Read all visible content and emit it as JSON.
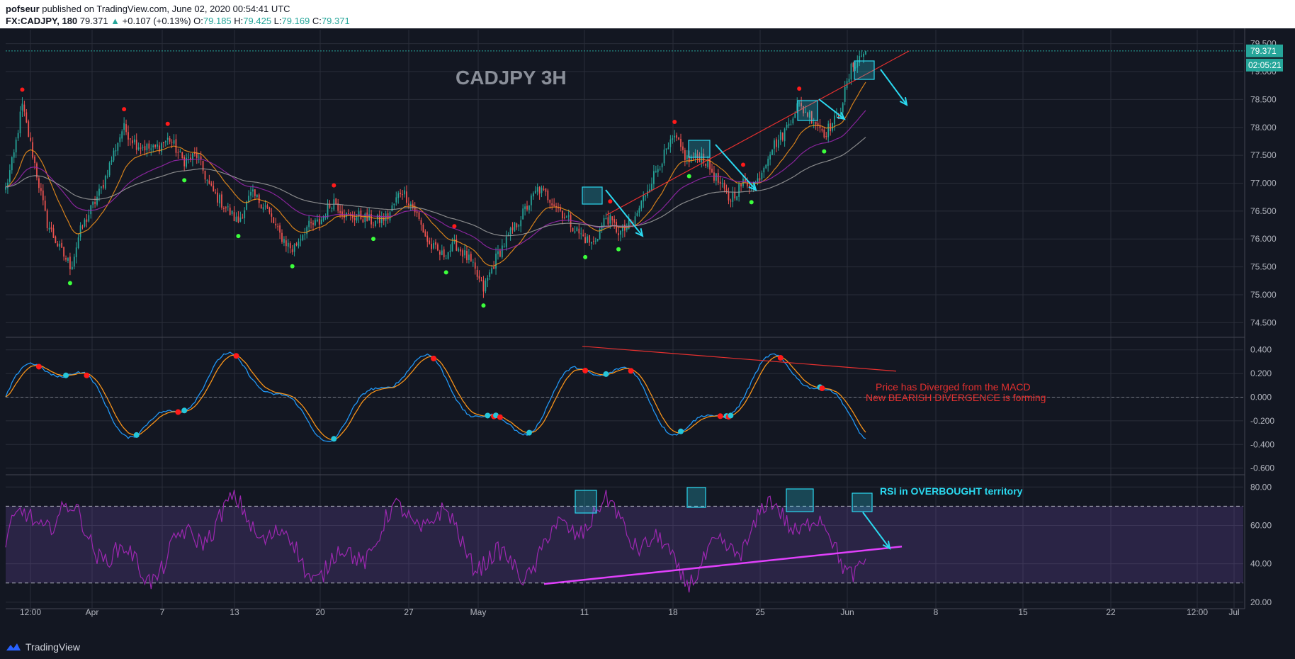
{
  "header": {
    "publisher": "pofseur",
    "published_text": "published on TradingView.com, June 02, 2020 00:54:41 UTC",
    "symbol": "FX:CADJPY, 180",
    "last": "79.371",
    "change": "+0.107 (+0.13%)",
    "o_label": "O:",
    "o": "79.185",
    "h_label": "H:",
    "h": "79.425",
    "l_label": "L:",
    "l": "79.169",
    "c_label": "C:",
    "c": "79.371"
  },
  "footer": {
    "brand": "TradingView"
  },
  "colors": {
    "background": "#131722",
    "bull": "#26a69a",
    "bear": "#ef5350",
    "ema_fast": "#f7931a",
    "ema_mid": "#9c27b0",
    "ema_slow": "#9e9e9e",
    "annotation": "#2bd9f0",
    "trendline": "#e5302f",
    "rsi": "#9c27b0"
  },
  "chart_data": [
    {
      "type": "candlestick",
      "title": "CADJPY 3H",
      "ylim": [
        74.25,
        79.75
      ],
      "yticks": [
        "79.500",
        "79.000",
        "78.500",
        "78.000",
        "77.500",
        "77.000",
        "76.500",
        "76.000",
        "75.500",
        "75.000",
        "74.500"
      ],
      "last_price_label": "79.371",
      "countdown_label": "02:05:21",
      "xticks": [
        "12:00",
        "Apr",
        "7",
        "13",
        "20",
        "27",
        "May",
        "11",
        "18",
        "25",
        "Jun",
        "8",
        "15",
        "22",
        "12:00",
        "Jul"
      ],
      "close_path_points": [
        [
          0,
          76.9
        ],
        [
          0.6,
          77.5
        ],
        [
          1.2,
          78.4
        ],
        [
          2.0,
          77.5
        ],
        [
          3.0,
          76.3
        ],
        [
          4.0,
          75.8
        ],
        [
          4.8,
          75.5
        ],
        [
          5.4,
          76.1
        ],
        [
          6.2,
          76.5
        ],
        [
          7.0,
          76.9
        ],
        [
          8.0,
          77.6
        ],
        [
          8.6,
          78.0
        ],
        [
          9.6,
          77.7
        ],
        [
          10.8,
          77.6
        ],
        [
          12.0,
          77.8
        ],
        [
          13.0,
          77.4
        ],
        [
          14.0,
          77.5
        ],
        [
          15.0,
          76.9
        ],
        [
          16.0,
          76.6
        ],
        [
          17.0,
          76.3
        ],
        [
          18.0,
          76.8
        ],
        [
          19.0,
          76.6
        ],
        [
          20.0,
          76.1
        ],
        [
          21.0,
          75.8
        ],
        [
          22.0,
          76.2
        ],
        [
          23.0,
          76.3
        ],
        [
          24.0,
          76.7
        ],
        [
          25.0,
          76.4
        ],
        [
          26.0,
          76.4
        ],
        [
          27.0,
          76.3
        ],
        [
          28.0,
          76.4
        ],
        [
          29.0,
          76.9
        ],
        [
          30.0,
          76.5
        ],
        [
          31.0,
          75.9
        ],
        [
          32.0,
          75.7
        ],
        [
          33.0,
          75.9
        ],
        [
          34.0,
          75.6
        ],
        [
          35.0,
          75.1
        ],
        [
          36.0,
          75.7
        ],
        [
          37.0,
          76.1
        ],
        [
          38.0,
          76.5
        ],
        [
          39.0,
          76.9
        ],
        [
          40.0,
          76.7
        ],
        [
          41.0,
          76.4
        ],
        [
          42.0,
          76.1
        ],
        [
          43.0,
          75.9
        ],
        [
          44.0,
          76.4
        ],
        [
          45.0,
          76.1
        ],
        [
          46.0,
          76.3
        ],
        [
          47.0,
          76.9
        ],
        [
          48.0,
          77.4
        ],
        [
          49.0,
          77.8
        ],
        [
          50.0,
          77.4
        ],
        [
          51.0,
          77.5
        ],
        [
          52.0,
          77.1
        ],
        [
          53.0,
          76.7
        ],
        [
          54.0,
          77.0
        ],
        [
          55.0,
          77.0
        ],
        [
          56.0,
          77.6
        ],
        [
          57.0,
          77.9
        ],
        [
          58.0,
          78.4
        ],
        [
          59.0,
          78.2
        ],
        [
          60.0,
          77.9
        ],
        [
          61.0,
          78.2
        ],
        [
          62.0,
          79.1
        ],
        [
          63.0,
          79.37
        ]
      ],
      "moving_averages": [
        {
          "color": "#f7931a",
          "role": "fast"
        },
        {
          "color": "#9c27b0",
          "role": "mid"
        },
        {
          "color": "#9e9e9e",
          "role": "slow"
        }
      ]
    },
    {
      "type": "line",
      "ylim": [
        -0.65,
        0.5
      ],
      "yticks": [
        "0.400",
        "0.200",
        "0.000",
        "-0.200",
        "-0.400",
        "-0.600"
      ],
      "annotation_1": "Price has Diverged from the MACD",
      "annotation_2": "New BEARISH DIVERGENCE is forming"
    },
    {
      "type": "line",
      "ylim": [
        17,
        86
      ],
      "yticks": [
        "80.00",
        "60.00",
        "40.00",
        "20.00"
      ],
      "overbought": 70,
      "oversold": 30,
      "annotation": "RSI in OVERBOUGHT territory"
    }
  ]
}
